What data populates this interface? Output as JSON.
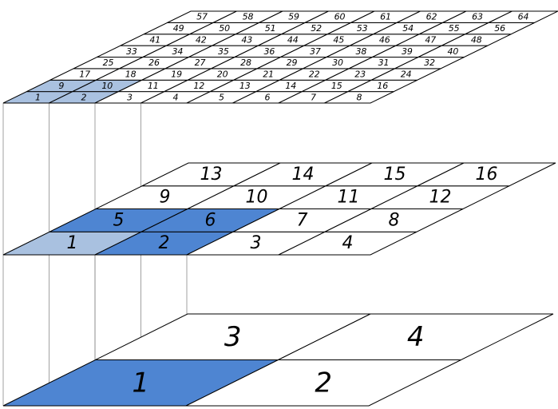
{
  "colors": {
    "background": "#ffffff",
    "line": "#000000",
    "connector": "#8a8a8a",
    "highlight_light": "#a9c1e0",
    "highlight_dark": "#4e85d2"
  },
  "layers": [
    {
      "name": "level-8x8",
      "cols": 8,
      "rows": 8,
      "labels": [
        [
          "1",
          "2",
          "3",
          "4",
          "5",
          "6",
          "7",
          "8"
        ],
        [
          "9",
          "10",
          "11",
          "12",
          "13",
          "14",
          "15",
          "16"
        ],
        [
          "17",
          "18",
          "19",
          "20",
          "21",
          "22",
          "23",
          "24"
        ],
        [
          "25",
          "26",
          "27",
          "28",
          "29",
          "30",
          "31",
          "32"
        ],
        [
          "33",
          "34",
          "35",
          "36",
          "37",
          "38",
          "39",
          "40"
        ],
        [
          "41",
          "42",
          "43",
          "44",
          "45",
          "46",
          "47",
          "48"
        ],
        [
          "49",
          "50",
          "51",
          "52",
          "53",
          "54",
          "55",
          "56"
        ],
        [
          "57",
          "58",
          "59",
          "60",
          "61",
          "62",
          "63",
          "64"
        ]
      ],
      "highlight_light": [
        "1",
        "2",
        "9",
        "10"
      ],
      "highlight_dark": []
    },
    {
      "name": "level-4x4",
      "cols": 4,
      "rows": 4,
      "labels": [
        [
          "1",
          "2",
          "3",
          "4"
        ],
        [
          "5",
          "6",
          "7",
          "8"
        ],
        [
          "9",
          "10",
          "11",
          "12"
        ],
        [
          "13",
          "14",
          "15",
          "16"
        ]
      ],
      "highlight_light": [
        "1"
      ],
      "highlight_dark": [
        "2",
        "5",
        "6"
      ]
    },
    {
      "name": "level-2x2",
      "cols": 2,
      "rows": 2,
      "labels": [
        [
          "1",
          "2"
        ],
        [
          "3",
          "4"
        ]
      ],
      "highlight_light": [],
      "highlight_dark": [
        "1"
      ]
    }
  ]
}
